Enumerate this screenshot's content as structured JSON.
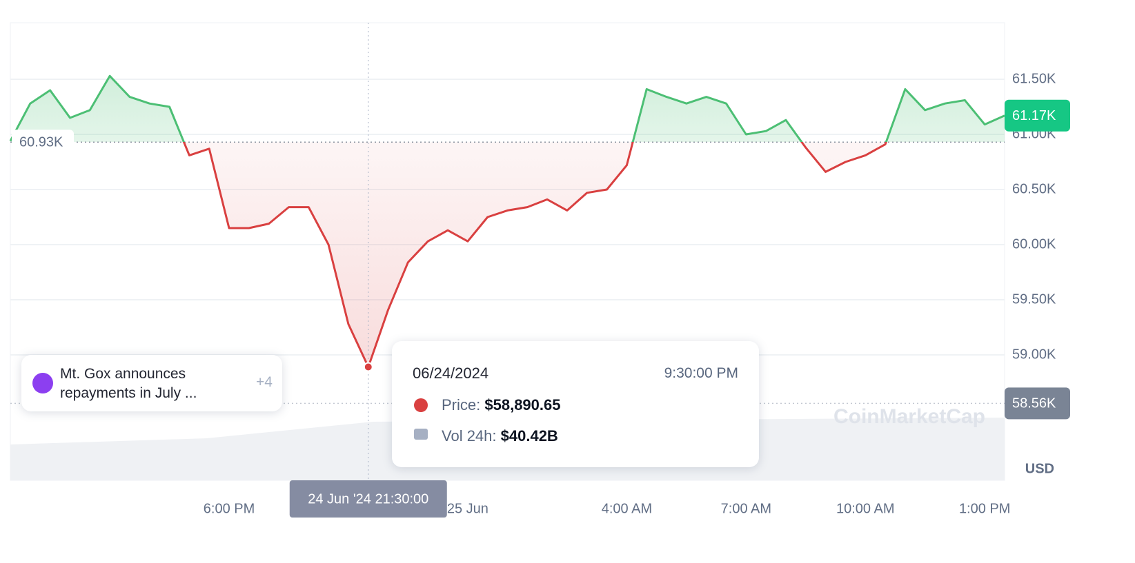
{
  "chart_data": {
    "type": "line",
    "unit": "USD",
    "watermark": "CoinMarketCap",
    "xlim": [
      0,
      50
    ],
    "xticks": [
      {
        "value": 11,
        "label": "6:00 PM"
      },
      {
        "value": 23,
        "label": "25 Jun"
      },
      {
        "value": 31,
        "label": "4:00 AM"
      },
      {
        "value": 37,
        "label": "7:00 AM"
      },
      {
        "value": 43,
        "label": "10:00 AM"
      },
      {
        "value": 49,
        "label": "1:00 PM"
      }
    ],
    "ylim": [
      57862.5,
      62012.5
    ],
    "yticks": [
      {
        "value": 59000,
        "label": "59.00K"
      },
      {
        "value": 59500,
        "label": "59.50K"
      },
      {
        "value": 60000,
        "label": "60.00K"
      },
      {
        "value": 60500,
        "label": "60.50K"
      },
      {
        "value": 61000,
        "label": "61.00K"
      },
      {
        "value": 61500,
        "label": "61.50K"
      }
    ],
    "grid": true,
    "baseline": {
      "value": 60930,
      "label": "60.93K"
    },
    "low": {
      "value": 58560,
      "label": "58.56K"
    },
    "last": {
      "value": 61170,
      "label": "61.17K"
    },
    "series": [
      {
        "name": "Price",
        "up_color": "#4cbf74",
        "down_color": "#d94040",
        "values": [
          60940,
          61280,
          61400,
          61150,
          61220,
          61530,
          61340,
          61280,
          61250,
          60810,
          60870,
          60150,
          60150,
          60190,
          60340,
          60340,
          60000,
          59280,
          58890.65,
          59410,
          59840,
          60030,
          60130,
          60030,
          60250,
          60310,
          60340,
          60410,
          60310,
          60470,
          60500,
          60720,
          61410,
          61340,
          61280,
          61340,
          61280,
          61000,
          61030,
          61130,
          60880,
          60660,
          60750,
          60810,
          60910,
          61410,
          61220,
          61280,
          61310,
          61090,
          61170
        ]
      }
    ],
    "crosshair": {
      "index": 18,
      "label": "24 Jun '24 21:30:00"
    },
    "tooltip": {
      "date": "06/24/2024",
      "time": "9:30:00 PM",
      "price_label": "Price:",
      "price": "$58,890.65",
      "volume_label": "Vol 24h:",
      "volume": "$40.42B"
    },
    "event": {
      "text": "Mt. Gox announces repayments in July ...",
      "more": "+4"
    }
  }
}
